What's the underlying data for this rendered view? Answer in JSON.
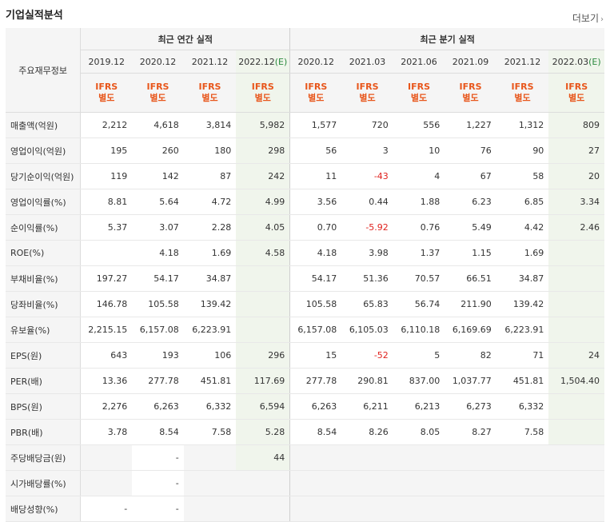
{
  "title": "기업실적분석",
  "more_label": "더보기",
  "table": {
    "row_header": "주요재무정보",
    "group_annual": "최근 연간 실적",
    "group_quarter": "최근 분기 실적",
    "periods": [
      {
        "label": "2019.12",
        "est": false
      },
      {
        "label": "2020.12",
        "est": false
      },
      {
        "label": "2021.12",
        "est": false
      },
      {
        "label": "2022.12",
        "est": true
      },
      {
        "label": "2020.12",
        "est": false
      },
      {
        "label": "2021.03",
        "est": false
      },
      {
        "label": "2021.06",
        "est": false
      },
      {
        "label": "2021.09",
        "est": false
      },
      {
        "label": "2021.12",
        "est": false
      },
      {
        "label": "2022.03",
        "est": true
      }
    ],
    "est_suffix": "(E)",
    "ifrs_top": "IFRS",
    "ifrs_bottom": "별도",
    "rows": [
      {
        "label": "매출액(억원)",
        "values": [
          "2,212",
          "4,618",
          "3,814",
          "5,982",
          "1,577",
          "720",
          "556",
          "1,227",
          "1,312",
          "809"
        ]
      },
      {
        "label": "영업이익(억원)",
        "values": [
          "195",
          "260",
          "180",
          "298",
          "56",
          "3",
          "10",
          "76",
          "90",
          "27"
        ]
      },
      {
        "label": "당기순이익(억원)",
        "values": [
          "119",
          "142",
          "87",
          "242",
          "11",
          "-43",
          "4",
          "67",
          "58",
          "20"
        ]
      },
      {
        "label": "영업이익률(%)",
        "values": [
          "8.81",
          "5.64",
          "4.72",
          "4.99",
          "3.56",
          "0.44",
          "1.88",
          "6.23",
          "6.85",
          "3.34"
        ]
      },
      {
        "label": "순이익률(%)",
        "values": [
          "5.37",
          "3.07",
          "2.28",
          "4.05",
          "0.70",
          "-5.92",
          "0.76",
          "5.49",
          "4.42",
          "2.46"
        ]
      },
      {
        "label": "ROE(%)",
        "values": [
          "",
          "4.18",
          "1.69",
          "4.58",
          "4.18",
          "3.98",
          "1.37",
          "1.15",
          "1.69",
          ""
        ]
      },
      {
        "label": "부채비율(%)",
        "values": [
          "197.27",
          "54.17",
          "34.87",
          "",
          "54.17",
          "51.36",
          "70.57",
          "66.51",
          "34.87",
          ""
        ]
      },
      {
        "label": "당좌비율(%)",
        "values": [
          "146.78",
          "105.58",
          "139.42",
          "",
          "105.58",
          "65.83",
          "56.74",
          "211.90",
          "139.42",
          ""
        ]
      },
      {
        "label": "유보율(%)",
        "values": [
          "2,215.15",
          "6,157.08",
          "6,223.91",
          "",
          "6,157.08",
          "6,105.03",
          "6,110.18",
          "6,169.69",
          "6,223.91",
          ""
        ]
      },
      {
        "label": "EPS(원)",
        "values": [
          "643",
          "193",
          "106",
          "296",
          "15",
          "-52",
          "5",
          "82",
          "71",
          "24"
        ]
      },
      {
        "label": "PER(배)",
        "values": [
          "13.36",
          "277.78",
          "451.81",
          "117.69",
          "277.78",
          "290.81",
          "837.00",
          "1,037.77",
          "451.81",
          "1,504.40"
        ]
      },
      {
        "label": "BPS(원)",
        "values": [
          "2,276",
          "6,263",
          "6,332",
          "6,594",
          "6,263",
          "6,211",
          "6,213",
          "6,273",
          "6,332",
          ""
        ]
      },
      {
        "label": "PBR(배)",
        "values": [
          "3.78",
          "8.54",
          "7.58",
          "5.28",
          "8.54",
          "8.26",
          "8.05",
          "8.27",
          "7.58",
          ""
        ]
      },
      {
        "label": "주당배당금(원)",
        "values": [
          "",
          "-",
          "",
          "44",
          "",
          "",
          "",
          "",
          "",
          ""
        ]
      },
      {
        "label": "시가배당률(%)",
        "values": [
          "",
          "-",
          "",
          "",
          "",
          "",
          "",
          "",
          "",
          ""
        ]
      },
      {
        "label": "배당성향(%)",
        "values": [
          "-",
          "-",
          "",
          "",
          "",
          "",
          "",
          "",
          "",
          ""
        ]
      }
    ]
  },
  "colors": {
    "ifrs": "#e8561b",
    "negative": "#e0221e",
    "estimate_bg": "#f0f5ec",
    "estimate_text": "#2b8a3e",
    "header_bg": "#f5f5f5"
  }
}
